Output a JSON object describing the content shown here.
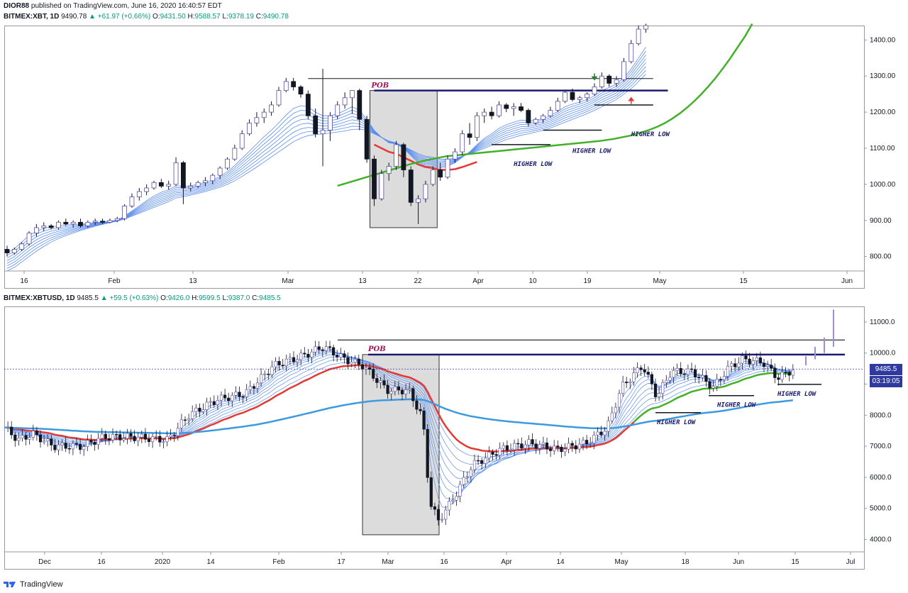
{
  "header": {
    "author": "DIOR88",
    "published": "published on TradingView.com, June 16, 2020 16:40:57 EDT"
  },
  "chart_data": [
    {
      "type": "candlestick",
      "symbol": "BITMEX:XBT, 1D",
      "legend": {
        "last": "9490.78",
        "change": "▲ +61.97 (+0.66%)",
        "o_label": "O:",
        "o": "9431.50",
        "h_label": "H:",
        "h": "9588.57",
        "l_label": "L:",
        "l": "9378.19",
        "c_label": "C:",
        "c": "9490.78"
      },
      "y_ticks": [
        "1400.00",
        "1300.00",
        "1200.00",
        "1100.00",
        "1000.00",
        "900.00",
        "800.00"
      ],
      "ylim": [
        760,
        1440
      ],
      "x_ticks": [
        "16",
        "Feb",
        "13",
        "Mar",
        "13",
        "22",
        "Apr",
        "10",
        "19",
        "May",
        "15",
        "Jun"
      ],
      "candles": [
        [
          820,
          830,
          800,
          810
        ],
        [
          810,
          825,
          805,
          820
        ],
        [
          820,
          840,
          815,
          835
        ],
        [
          835,
          870,
          830,
          865
        ],
        [
          865,
          890,
          855,
          880
        ],
        [
          880,
          895,
          870,
          885
        ],
        [
          885,
          890,
          875,
          880
        ],
        [
          880,
          900,
          875,
          895
        ],
        [
          895,
          905,
          885,
          890
        ],
        [
          890,
          900,
          880,
          895
        ],
        [
          895,
          905,
          880,
          885
        ],
        [
          885,
          900,
          880,
          895
        ],
        [
          895,
          905,
          888,
          898
        ],
        [
          898,
          905,
          890,
          895
        ],
        [
          895,
          905,
          892,
          900
        ],
        [
          900,
          910,
          895,
          905
        ],
        [
          905,
          945,
          900,
          940
        ],
        [
          940,
          975,
          935,
          965
        ],
        [
          965,
          990,
          955,
          980
        ],
        [
          980,
          1000,
          970,
          990
        ],
        [
          990,
          1010,
          985,
          1005
        ],
        [
          1005,
          1015,
          990,
          995
        ],
        [
          995,
          1010,
          985,
          1000
        ],
        [
          1000,
          1075,
          995,
          1060
        ],
        [
          1060,
          1065,
          945,
          990
        ],
        [
          990,
          1005,
          980,
          995
        ],
        [
          995,
          1010,
          990,
          1005
        ],
        [
          1005,
          1020,
          995,
          1010
        ],
        [
          1010,
          1030,
          1000,
          1025
        ],
        [
          1025,
          1050,
          1015,
          1045
        ],
        [
          1045,
          1075,
          1040,
          1070
        ],
        [
          1070,
          1110,
          1065,
          1100
        ],
        [
          1100,
          1150,
          1095,
          1140
        ],
        [
          1140,
          1180,
          1135,
          1170
        ],
        [
          1170,
          1200,
          1160,
          1185
        ],
        [
          1185,
          1210,
          1170,
          1200
        ],
        [
          1200,
          1230,
          1190,
          1220
        ],
        [
          1220,
          1270,
          1215,
          1260
        ],
        [
          1260,
          1295,
          1255,
          1285
        ],
        [
          1285,
          1295,
          1260,
          1270
        ],
        [
          1270,
          1275,
          1240,
          1250
        ],
        [
          1250,
          1260,
          1180,
          1190
        ],
        [
          1190,
          1210,
          1130,
          1140
        ],
        [
          1140,
          1320,
          1050,
          1150
        ],
        [
          1150,
          1200,
          1120,
          1190
        ],
        [
          1190,
          1230,
          1180,
          1220
        ],
        [
          1220,
          1255,
          1210,
          1240
        ],
        [
          1240,
          1260,
          1195,
          1260
        ],
        [
          1260,
          1265,
          1150,
          1180
        ],
        [
          1180,
          1190,
          1060,
          1070
        ],
        [
          1070,
          1080,
          940,
          960
        ],
        [
          960,
          1040,
          955,
          1030
        ],
        [
          1030,
          1060,
          1010,
          1050
        ],
        [
          1050,
          1120,
          1040,
          1110
        ],
        [
          1110,
          1115,
          1020,
          1040
        ],
        [
          1040,
          1050,
          940,
          950
        ],
        [
          950,
          970,
          890,
          960
        ],
        [
          960,
          1010,
          950,
          1000
        ],
        [
          1000,
          1050,
          995,
          1040
        ],
        [
          1040,
          1060,
          1010,
          1020
        ],
        [
          1020,
          1080,
          1015,
          1070
        ],
        [
          1070,
          1100,
          1060,
          1090
        ],
        [
          1090,
          1150,
          1080,
          1140
        ],
        [
          1140,
          1170,
          1110,
          1130
        ],
        [
          1130,
          1200,
          1120,
          1190
        ],
        [
          1190,
          1210,
          1170,
          1200
        ],
        [
          1200,
          1215,
          1180,
          1190
        ],
        [
          1190,
          1230,
          1185,
          1220
        ],
        [
          1220,
          1225,
          1200,
          1210
        ],
        [
          1210,
          1225,
          1190,
          1215
        ],
        [
          1215,
          1225,
          1200,
          1205
        ],
        [
          1205,
          1210,
          1160,
          1170
        ],
        [
          1170,
          1185,
          1165,
          1180
        ],
        [
          1180,
          1195,
          1170,
          1190
        ],
        [
          1190,
          1215,
          1185,
          1205
        ],
        [
          1205,
          1240,
          1200,
          1230
        ],
        [
          1230,
          1260,
          1225,
          1255
        ],
        [
          1255,
          1265,
          1230,
          1235
        ],
        [
          1235,
          1245,
          1225,
          1240
        ],
        [
          1240,
          1255,
          1230,
          1250
        ],
        [
          1250,
          1280,
          1245,
          1270
        ],
        [
          1270,
          1310,
          1265,
          1300
        ],
        [
          1300,
          1305,
          1270,
          1280
        ],
        [
          1280,
          1300,
          1270,
          1290
        ],
        [
          1290,
          1350,
          1285,
          1340
        ],
        [
          1340,
          1400,
          1335,
          1390
        ],
        [
          1390,
          1440,
          1385,
          1430
        ],
        [
          1430,
          1445,
          1420,
          1440
        ]
      ],
      "ribbon_fast": [
        810,
        822,
        840,
        858,
        870,
        878,
        882,
        885,
        887,
        889,
        890,
        892,
        894,
        896,
        898,
        901,
        912,
        926,
        940,
        955,
        968,
        978,
        985,
        996,
        995,
        996,
        1000,
        1005,
        1012,
        1022,
        1035,
        1052,
        1072,
        1092,
        1112,
        1132,
        1150,
        1170,
        1192,
        1210,
        1218,
        1215,
        1200,
        1190,
        1190,
        1195,
        1205,
        1215,
        1205,
        1180,
        1150,
        1130,
        1115,
        1112,
        1100,
        1080,
        1060,
        1050,
        1050,
        1045,
        1050,
        1060,
        1075,
        1090,
        1110,
        1128,
        1140,
        1155,
        1165,
        1172,
        1178,
        1176,
        1178,
        1182,
        1190,
        1202,
        1215,
        1222,
        1228,
        1235,
        1245,
        1260,
        1268,
        1278,
        1295,
        1320,
        1350,
        1380
      ],
      "ribbon_slow": [
        760,
        770,
        785,
        800,
        815,
        828,
        840,
        850,
        858,
        865,
        872,
        878,
        884,
        889,
        894,
        898,
        904,
        912,
        920,
        928,
        936,
        944,
        952,
        962,
        966,
        970,
        975,
        980,
        986,
        992,
        1000,
        1010,
        1022,
        1035,
        1048,
        1062,
        1076,
        1090,
        1104,
        1118,
        1128,
        1135,
        1138,
        1140,
        1142,
        1145,
        1148,
        1152,
        1153,
        1150,
        1140,
        1130,
        1120,
        1115,
        1105,
        1095,
        1085,
        1078,
        1075,
        1070,
        1070,
        1072,
        1078,
        1085,
        1092,
        1100,
        1108,
        1116,
        1124,
        1130,
        1136,
        1140,
        1145,
        1150,
        1156,
        1164,
        1172,
        1180,
        1188,
        1196,
        1205,
        1215,
        1225,
        1235,
        1250,
        1265,
        1285,
        1305
      ],
      "ma_red_range": [
        50,
        64
      ],
      "ma_green_start": 45,
      "ma_green": [
        996,
        1002,
        1008,
        1014,
        1020,
        1026,
        1032,
        1038,
        1044,
        1050,
        1056,
        1061,
        1066,
        1070,
        1074,
        1078,
        1080,
        1082,
        1084,
        1086,
        1088,
        1090,
        1092,
        1094,
        1096,
        1098,
        1100,
        1102,
        1104,
        1106,
        1108,
        1110,
        1112,
        1114,
        1116,
        1118,
        1120,
        1123,
        1126,
        1130,
        1134,
        1139,
        1145,
        1152,
        1160,
        1170,
        1182,
        1196,
        1212,
        1230,
        1250,
        1272,
        1296,
        1322,
        1350,
        1380,
        1410,
        1445
      ],
      "annotations": {
        "pob": "POB",
        "hl1": "HIGHER LOW",
        "hl2": "HIGHER LOW",
        "hl3": "HIGHER LOW"
      }
    },
    {
      "type": "candlestick",
      "symbol": "BITMEX:XBTUSD, 1D",
      "legend": {
        "last": "9485.5",
        "change": "▲ +59.5 (+0.63%)",
        "o_label": "O:",
        "o": "9426.0",
        "h_label": "H:",
        "h": "9599.5",
        "l_label": "L:",
        "l": "9387.0",
        "c_label": "C:",
        "c": "9485.5"
      },
      "y_ticks": [
        "11000.0",
        "10000.0",
        "9000.0",
        "8000.0",
        "7000.0",
        "6000.0",
        "5000.0",
        "4000.0"
      ],
      "ylim": [
        3600,
        11500
      ],
      "x_ticks": [
        "Dec",
        "16",
        "2020",
        "14",
        "Feb",
        "17",
        "Mar",
        "16",
        "Apr",
        "14",
        "May",
        "18",
        "Jun",
        "15",
        "Jul"
      ],
      "last_price_tag": "9485.5",
      "countdown_tag": "03:19:05",
      "annotations": {
        "pob": "POB",
        "hl1": "HIGHER LOW",
        "hl2": "HIGHER LOW",
        "hl3": "HIGHER LOW"
      }
    }
  ],
  "footer": {
    "brand": "TradingView"
  },
  "colors": {
    "up_body": "#ffffff",
    "down_body": "#131722",
    "wick": "#131722",
    "ribbon": "#5b8def",
    "ma_red": "#e53935",
    "ma_green": "#43b02a",
    "ma_blue": "#3d9ae0",
    "pob_box": "#dcdcdc",
    "level_line": "#1a1a6e",
    "arrow_up": "#e53935",
    "arrow_down": "#2e7d32",
    "forecast": "#a78bd0"
  }
}
